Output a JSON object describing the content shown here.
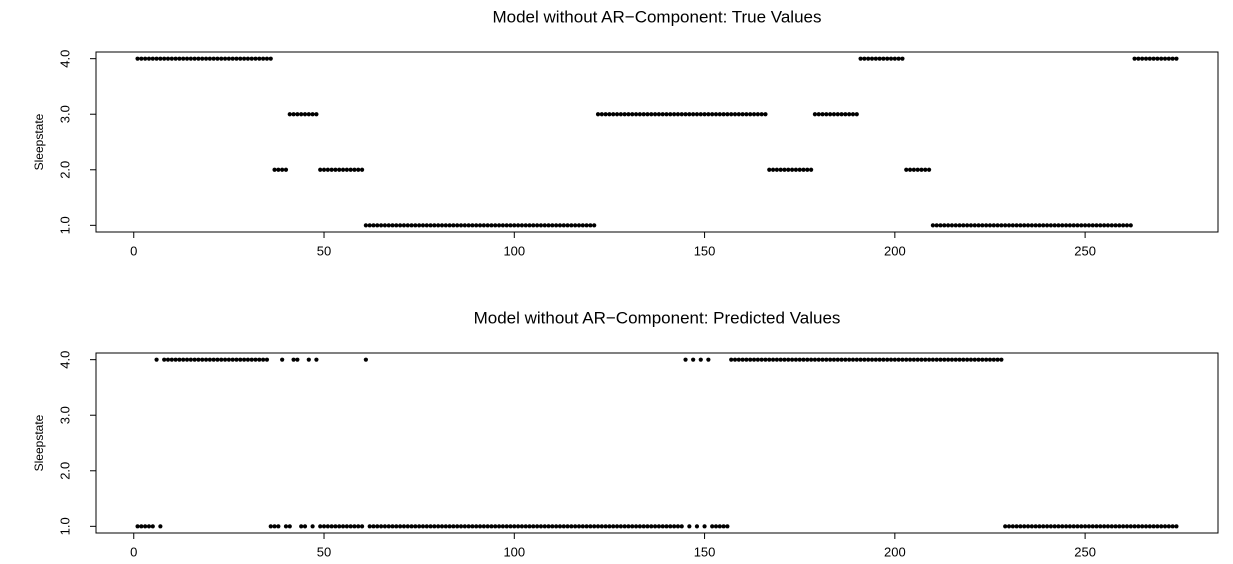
{
  "chart_data": [
    {
      "type": "scatter",
      "title": "Model without AR−Component: True Values",
      "y_label": "Sleepstate",
      "color": "#000000",
      "xlim": [
        -9.92,
        284.92
      ],
      "ylim": [
        0.88,
        4.12
      ],
      "xticks": [
        0,
        50,
        100,
        150,
        200,
        250
      ],
      "yticks": [
        {
          "value": 1,
          "label": "1.0"
        },
        {
          "value": 2,
          "label": "2.0"
        },
        {
          "value": 3,
          "label": "3.0"
        },
        {
          "value": 4,
          "label": "4.0"
        }
      ],
      "x": [
        1,
        2,
        3,
        4,
        5,
        6,
        7,
        8,
        9,
        10,
        11,
        12,
        13,
        14,
        15,
        16,
        17,
        18,
        19,
        20,
        21,
        22,
        23,
        24,
        25,
        26,
        27,
        28,
        29,
        30,
        31,
        32,
        33,
        34,
        35,
        36,
        37,
        38,
        39,
        40,
        41,
        42,
        43,
        44,
        45,
        46,
        47,
        48,
        49,
        50,
        51,
        52,
        53,
        54,
        55,
        56,
        57,
        58,
        59,
        60,
        61,
        62,
        63,
        64,
        65,
        66,
        67,
        68,
        69,
        70,
        71,
        72,
        73,
        74,
        75,
        76,
        77,
        78,
        79,
        80,
        81,
        82,
        83,
        84,
        85,
        86,
        87,
        88,
        89,
        90,
        91,
        92,
        93,
        94,
        95,
        96,
        97,
        98,
        99,
        100,
        101,
        102,
        103,
        104,
        105,
        106,
        107,
        108,
        109,
        110,
        111,
        112,
        113,
        114,
        115,
        116,
        117,
        118,
        119,
        120,
        121,
        122,
        123,
        124,
        125,
        126,
        127,
        128,
        129,
        130,
        131,
        132,
        133,
        134,
        135,
        136,
        137,
        138,
        139,
        140,
        141,
        142,
        143,
        144,
        145,
        146,
        147,
        148,
        149,
        150,
        151,
        152,
        153,
        154,
        155,
        156,
        157,
        158,
        159,
        160,
        161,
        162,
        163,
        164,
        165,
        166,
        167,
        168,
        169,
        170,
        171,
        172,
        173,
        174,
        175,
        176,
        177,
        178,
        179,
        180,
        181,
        182,
        183,
        184,
        185,
        186,
        187,
        188,
        189,
        190,
        191,
        192,
        193,
        194,
        195,
        196,
        197,
        198,
        199,
        200,
        201,
        202,
        203,
        204,
        205,
        206,
        207,
        208,
        209,
        210,
        211,
        212,
        213,
        214,
        215,
        216,
        217,
        218,
        219,
        220,
        221,
        222,
        223,
        224,
        225,
        226,
        227,
        228,
        229,
        230,
        231,
        232,
        233,
        234,
        235,
        236,
        237,
        238,
        239,
        240,
        241,
        242,
        243,
        244,
        245,
        246,
        247,
        248,
        249,
        250,
        251,
        252,
        253,
        254,
        255,
        256,
        257,
        258,
        259,
        260,
        261,
        262,
        263,
        264,
        265,
        266,
        267,
        268,
        269,
        270,
        271,
        272,
        273,
        274
      ],
      "values": [
        4,
        4,
        4,
        4,
        4,
        4,
        4,
        4,
        4,
        4,
        4,
        4,
        4,
        4,
        4,
        4,
        4,
        4,
        4,
        4,
        4,
        4,
        4,
        4,
        4,
        4,
        4,
        4,
        4,
        4,
        4,
        4,
        4,
        4,
        4,
        4,
        2,
        2,
        2,
        2,
        3,
        3,
        3,
        3,
        3,
        3,
        3,
        3,
        2,
        2,
        2,
        2,
        2,
        2,
        2,
        2,
        2,
        2,
        2,
        2,
        1,
        1,
        1,
        1,
        1,
        1,
        1,
        1,
        1,
        1,
        1,
        1,
        1,
        1,
        1,
        1,
        1,
        1,
        1,
        1,
        1,
        1,
        1,
        1,
        1,
        1,
        1,
        1,
        1,
        1,
        1,
        1,
        1,
        1,
        1,
        1,
        1,
        1,
        1,
        1,
        1,
        1,
        1,
        1,
        1,
        1,
        1,
        1,
        1,
        1,
        1,
        1,
        1,
        1,
        1,
        1,
        1,
        1,
        1,
        1,
        1,
        3,
        3,
        3,
        3,
        3,
        3,
        3,
        3,
        3,
        3,
        3,
        3,
        3,
        3,
        3,
        3,
        3,
        3,
        3,
        3,
        3,
        3,
        3,
        3,
        3,
        3,
        3,
        3,
        3,
        3,
        3,
        3,
        3,
        3,
        3,
        3,
        3,
        3,
        3,
        3,
        3,
        3,
        3,
        3,
        3,
        2,
        2,
        2,
        2,
        2,
        2,
        2,
        2,
        2,
        2,
        2,
        2,
        3,
        3,
        3,
        3,
        3,
        3,
        3,
        3,
        3,
        3,
        3,
        3,
        4,
        4,
        4,
        4,
        4,
        4,
        4,
        4,
        4,
        4,
        4,
        4,
        2,
        2,
        2,
        2,
        2,
        2,
        2,
        1,
        1,
        1,
        1,
        1,
        1,
        1,
        1,
        1,
        1,
        1,
        1,
        1,
        1,
        1,
        1,
        1,
        1,
        1,
        1,
        1,
        1,
        1,
        1,
        1,
        1,
        1,
        1,
        1,
        1,
        1,
        1,
        1,
        1,
        1,
        1,
        1,
        1,
        1,
        1,
        1,
        1,
        1,
        1,
        1,
        1,
        1,
        1,
        1,
        1,
        1,
        1,
        1,
        4,
        4,
        4,
        4,
        4,
        4,
        4,
        4,
        4,
        4,
        4,
        4
      ]
    },
    {
      "type": "scatter",
      "title": "Model without AR−Component: Predicted Values",
      "y_label": "Sleepstate",
      "color": "#000000",
      "xlim": [
        -9.92,
        284.92
      ],
      "ylim": [
        0.88,
        4.12
      ],
      "xticks": [
        0,
        50,
        100,
        150,
        200,
        250
      ],
      "yticks": [
        {
          "value": 1,
          "label": "1.0"
        },
        {
          "value": 2,
          "label": "2.0"
        },
        {
          "value": 3,
          "label": "3.0"
        },
        {
          "value": 4,
          "label": "4.0"
        }
      ],
      "x": [
        1,
        2,
        3,
        4,
        5,
        6,
        7,
        8,
        9,
        10,
        11,
        12,
        13,
        14,
        15,
        16,
        17,
        18,
        19,
        20,
        21,
        22,
        23,
        24,
        25,
        26,
        27,
        28,
        29,
        30,
        31,
        32,
        33,
        34,
        35,
        36,
        37,
        38,
        39,
        40,
        41,
        42,
        43,
        44,
        45,
        46,
        47,
        48,
        49,
        50,
        51,
        52,
        53,
        54,
        55,
        56,
        57,
        58,
        59,
        60,
        61,
        62,
        63,
        64,
        65,
        66,
        67,
        68,
        69,
        70,
        71,
        72,
        73,
        74,
        75,
        76,
        77,
        78,
        79,
        80,
        81,
        82,
        83,
        84,
        85,
        86,
        87,
        88,
        89,
        90,
        91,
        92,
        93,
        94,
        95,
        96,
        97,
        98,
        99,
        100,
        101,
        102,
        103,
        104,
        105,
        106,
        107,
        108,
        109,
        110,
        111,
        112,
        113,
        114,
        115,
        116,
        117,
        118,
        119,
        120,
        121,
        122,
        123,
        124,
        125,
        126,
        127,
        128,
        129,
        130,
        131,
        132,
        133,
        134,
        135,
        136,
        137,
        138,
        139,
        140,
        141,
        142,
        143,
        144,
        145,
        146,
        147,
        148,
        149,
        150,
        151,
        152,
        153,
        154,
        155,
        156,
        157,
        158,
        159,
        160,
        161,
        162,
        163,
        164,
        165,
        166,
        167,
        168,
        169,
        170,
        171,
        172,
        173,
        174,
        175,
        176,
        177,
        178,
        179,
        180,
        181,
        182,
        183,
        184,
        185,
        186,
        187,
        188,
        189,
        190,
        191,
        192,
        193,
        194,
        195,
        196,
        197,
        198,
        199,
        200,
        201,
        202,
        203,
        204,
        205,
        206,
        207,
        208,
        209,
        210,
        211,
        212,
        213,
        214,
        215,
        216,
        217,
        218,
        219,
        220,
        221,
        222,
        223,
        224,
        225,
        226,
        227,
        228,
        229,
        230,
        231,
        232,
        233,
        234,
        235,
        236,
        237,
        238,
        239,
        240,
        241,
        242,
        243,
        244,
        245,
        246,
        247,
        248,
        249,
        250,
        251,
        252,
        253,
        254,
        255,
        256,
        257,
        258,
        259,
        260,
        261,
        262,
        263,
        264,
        265,
        266,
        267,
        268,
        269,
        270,
        271,
        272,
        273,
        274
      ],
      "values": [
        1,
        1,
        1,
        1,
        1,
        4,
        1,
        4,
        4,
        4,
        4,
        4,
        4,
        4,
        4,
        4,
        4,
        4,
        4,
        4,
        4,
        4,
        4,
        4,
        4,
        4,
        4,
        4,
        4,
        4,
        4,
        4,
        4,
        4,
        4,
        1,
        1,
        1,
        4,
        1,
        1,
        4,
        4,
        1,
        1,
        4,
        1,
        4,
        1,
        1,
        1,
        1,
        1,
        1,
        1,
        1,
        1,
        1,
        1,
        1,
        4,
        1,
        1,
        1,
        1,
        1,
        1,
        1,
        1,
        1,
        1,
        1,
        1,
        1,
        1,
        1,
        1,
        1,
        1,
        1,
        1,
        1,
        1,
        1,
        1,
        1,
        1,
        1,
        1,
        1,
        1,
        1,
        1,
        1,
        1,
        1,
        1,
        1,
        1,
        1,
        1,
        1,
        1,
        1,
        1,
        1,
        1,
        1,
        1,
        1,
        1,
        1,
        1,
        1,
        1,
        1,
        1,
        1,
        1,
        1,
        1,
        1,
        1,
        1,
        1,
        1,
        1,
        1,
        1,
        1,
        1,
        1,
        1,
        1,
        1,
        1,
        1,
        1,
        1,
        1,
        1,
        1,
        1,
        1,
        4,
        1,
        4,
        1,
        4,
        1,
        4,
        1,
        1,
        1,
        1,
        1,
        4,
        4,
        4,
        4,
        4,
        4,
        4,
        4,
        4,
        4,
        4,
        4,
        4,
        4,
        4,
        4,
        4,
        4,
        4,
        4,
        4,
        4,
        4,
        4,
        4,
        4,
        4,
        4,
        4,
        4,
        4,
        4,
        4,
        4,
        4,
        4,
        4,
        4,
        4,
        4,
        4,
        4,
        4,
        4,
        4,
        4,
        4,
        4,
        4,
        4,
        4,
        4,
        4,
        4,
        4,
        4,
        4,
        4,
        4,
        4,
        4,
        4,
        4,
        4,
        4,
        4,
        4,
        4,
        4,
        4,
        4,
        4,
        1,
        1,
        1,
        1,
        1,
        1,
        1,
        1,
        1,
        1,
        1,
        1,
        1,
        1,
        1,
        1,
        1,
        1,
        1,
        1,
        1,
        1,
        1,
        1,
        1,
        1,
        1,
        1,
        1,
        1,
        1,
        1,
        1,
        1,
        1,
        1,
        1,
        1,
        1,
        1,
        1,
        1,
        1,
        1,
        1,
        1
      ]
    }
  ]
}
